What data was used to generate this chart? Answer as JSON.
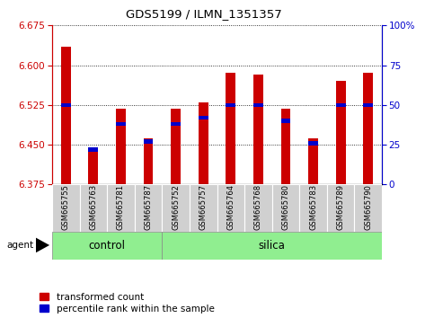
{
  "title": "GDS5199 / ILMN_1351357",
  "samples": [
    "GSM665755",
    "GSM665763",
    "GSM665781",
    "GSM665787",
    "GSM665752",
    "GSM665757",
    "GSM665764",
    "GSM665768",
    "GSM665780",
    "GSM665783",
    "GSM665789",
    "GSM665790"
  ],
  "control_count": 4,
  "transformed_count": [
    6.635,
    6.443,
    6.518,
    6.462,
    6.518,
    6.53,
    6.585,
    6.583,
    6.518,
    6.462,
    6.57,
    6.585
  ],
  "percentile_rank": [
    50,
    22,
    38,
    27,
    38,
    42,
    50,
    50,
    40,
    26,
    50,
    50
  ],
  "ylim_left": [
    6.375,
    6.675
  ],
  "ylim_right": [
    0,
    100
  ],
  "yticks_left": [
    6.375,
    6.45,
    6.525,
    6.6,
    6.675
  ],
  "yticks_right": [
    0,
    25,
    50,
    75,
    100
  ],
  "bar_color": "#cc0000",
  "percentile_color": "#0000cc",
  "bar_width": 0.35,
  "legend_labels": [
    "transformed count",
    "percentile rank within the sample"
  ],
  "group_label": "agent",
  "control_label": "control",
  "silica_label": "silica"
}
